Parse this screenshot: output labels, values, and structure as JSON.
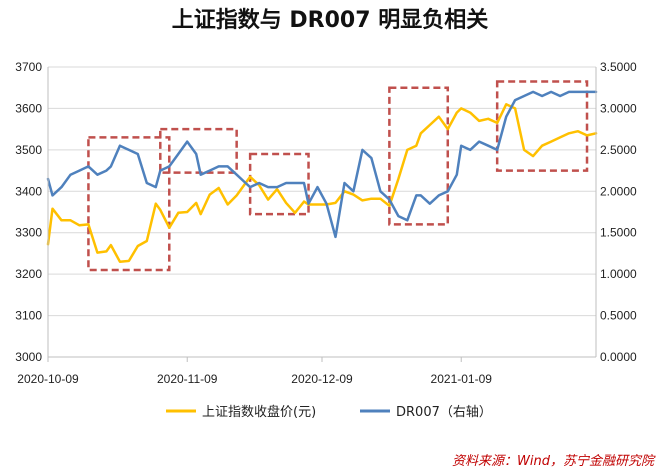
{
  "chart_data": {
    "type": "line",
    "title": "上证指数与 DR007 明显负相关",
    "x_ticks": [
      "2020-10-09",
      "2020-11-09",
      "2020-12-09",
      "2021-01-09"
    ],
    "y_left": {
      "lim": [
        3000,
        3700
      ],
      "ticks": [
        "3000",
        "3100",
        "3200",
        "3300",
        "3400",
        "3500",
        "3600",
        "3700"
      ]
    },
    "y_right": {
      "lim": [
        0,
        3.5
      ],
      "ticks": [
        "0.0000",
        "0.5000",
        "1.0000",
        "1.5000",
        "2.0000",
        "2.5000",
        "3.0000",
        "3.5000"
      ]
    },
    "date_range": [
      "2020-10-09",
      "2021-02-08"
    ],
    "series": [
      {
        "name": "上证指数收盘价(元)",
        "axis": "left",
        "color": "#FFC000",
        "x": [
          "2020-10-09",
          "2020-10-10",
          "2020-10-12",
          "2020-10-14",
          "2020-10-16",
          "2020-10-18",
          "2020-10-20",
          "2020-10-22",
          "2020-10-23",
          "2020-10-25",
          "2020-10-27",
          "2020-10-29",
          "2020-10-31",
          "2020-11-02",
          "2020-11-03",
          "2020-11-05",
          "2020-11-07",
          "2020-11-09",
          "2020-11-11",
          "2020-11-12",
          "2020-11-14",
          "2020-11-16",
          "2020-11-18",
          "2020-11-20",
          "2020-11-22",
          "2020-11-23",
          "2020-11-25",
          "2020-11-27",
          "2020-11-29",
          "2020-12-01",
          "2020-12-03",
          "2020-12-05",
          "2020-12-06",
          "2020-12-08",
          "2020-12-10",
          "2020-12-12",
          "2020-12-14",
          "2020-12-16",
          "2020-12-18",
          "2020-12-20",
          "2020-12-22",
          "2020-12-24",
          "2020-12-26",
          "2020-12-28",
          "2020-12-30",
          "2020-12-31",
          "2021-01-02",
          "2021-01-04",
          "2021-01-06",
          "2021-01-08",
          "2021-01-09",
          "2021-01-11",
          "2021-01-13",
          "2021-01-15",
          "2021-01-17",
          "2021-01-19",
          "2021-01-21",
          "2021-01-23",
          "2021-01-25",
          "2021-01-27",
          "2021-01-29",
          "2021-01-31",
          "2021-02-02",
          "2021-02-04",
          "2021-02-06",
          "2021-02-08"
        ],
        "values": [
          3272,
          3358,
          3330,
          3330,
          3318,
          3320,
          3252,
          3255,
          3270,
          3230,
          3232,
          3268,
          3280,
          3370,
          3355,
          3312,
          3348,
          3350,
          3372,
          3345,
          3392,
          3408,
          3368,
          3390,
          3420,
          3435,
          3415,
          3380,
          3405,
          3372,
          3348,
          3375,
          3368,
          3368,
          3368,
          3372,
          3400,
          3392,
          3378,
          3382,
          3382,
          3365,
          3430,
          3500,
          3510,
          3540,
          3560,
          3580,
          3550,
          3590,
          3600,
          3590,
          3570,
          3575,
          3565,
          3610,
          3600,
          3500,
          3485,
          3510,
          3520,
          3530,
          3540,
          3545,
          3535,
          3540
        ]
      },
      {
        "name": "DR007（右轴）",
        "axis": "right",
        "color": "#4F81BD",
        "x": [
          "2020-10-09",
          "2020-10-10",
          "2020-10-12",
          "2020-10-14",
          "2020-10-16",
          "2020-10-18",
          "2020-10-20",
          "2020-10-22",
          "2020-10-23",
          "2020-10-25",
          "2020-10-27",
          "2020-10-29",
          "2020-10-31",
          "2020-11-02",
          "2020-11-03",
          "2020-11-05",
          "2020-11-07",
          "2020-11-09",
          "2020-11-11",
          "2020-11-12",
          "2020-11-14",
          "2020-11-16",
          "2020-11-18",
          "2020-11-20",
          "2020-11-22",
          "2020-11-23",
          "2020-11-25",
          "2020-11-27",
          "2020-11-29",
          "2020-12-01",
          "2020-12-03",
          "2020-12-05",
          "2020-12-06",
          "2020-12-08",
          "2020-12-10",
          "2020-12-12",
          "2020-12-14",
          "2020-12-16",
          "2020-12-18",
          "2020-12-20",
          "2020-12-22",
          "2020-12-24",
          "2020-12-26",
          "2020-12-28",
          "2020-12-30",
          "2020-12-31",
          "2021-01-02",
          "2021-01-04",
          "2021-01-06",
          "2021-01-08",
          "2021-01-09",
          "2021-01-11",
          "2021-01-13",
          "2021-01-15",
          "2021-01-17",
          "2021-01-19",
          "2021-01-21",
          "2021-01-23",
          "2021-01-25",
          "2021-01-27",
          "2021-01-29",
          "2021-01-31",
          "2021-02-02",
          "2021-02-04",
          "2021-02-06",
          "2021-02-08"
        ],
        "values": [
          2.15,
          1.95,
          2.05,
          2.2,
          2.25,
          2.3,
          2.2,
          2.25,
          2.3,
          2.55,
          2.5,
          2.45,
          2.1,
          2.05,
          2.25,
          2.3,
          2.45,
          2.6,
          2.45,
          2.2,
          2.25,
          2.3,
          2.3,
          2.2,
          2.1,
          2.05,
          2.1,
          2.05,
          2.05,
          2.1,
          2.1,
          2.1,
          1.85,
          2.05,
          1.85,
          1.45,
          2.1,
          2.0,
          2.5,
          2.4,
          2.0,
          1.9,
          1.7,
          1.65,
          1.95,
          1.95,
          1.85,
          1.95,
          2.0,
          2.2,
          2.55,
          2.5,
          2.6,
          2.55,
          2.5,
          2.9,
          3.1,
          3.15,
          3.2,
          3.15,
          3.2,
          3.15,
          3.2,
          3.2,
          3.2,
          3.2
        ]
      }
    ],
    "highlight_boxes": [
      {
        "from": "2020-10-18",
        "to": "2020-11-05"
      },
      {
        "from": "2020-11-03",
        "to": "2020-11-20"
      },
      {
        "from": "2020-11-23",
        "to": "2020-12-06"
      },
      {
        "from": "2020-12-24",
        "to": "2021-01-06"
      },
      {
        "from": "2021-01-17",
        "to": "2021-02-06"
      }
    ],
    "legend_position": "bottom",
    "source": "资料来源：Wind，苏宁金融研究院"
  }
}
